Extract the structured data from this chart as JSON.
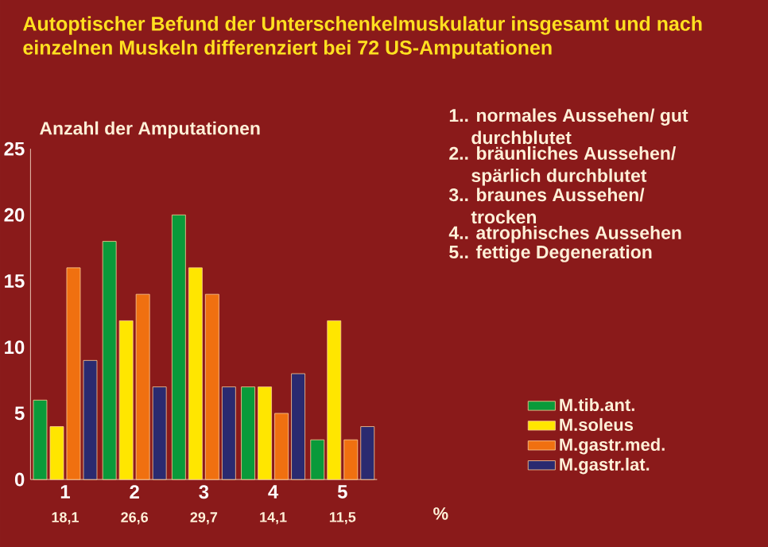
{
  "chart_data": {
    "type": "bar",
    "title": "Autoptischer Befund der Unterschenkelmuskulatur insgesamt und nach einzelnen Muskeln differenziert bei 72 US-Amputationen",
    "ylabel": "Anzahl der Amputationen",
    "categories": [
      "1",
      "2",
      "3",
      "4",
      "5"
    ],
    "series": [
      {
        "name": "M.tib.ant.",
        "color": "#0a9a3a",
        "values": [
          6,
          18,
          20,
          7,
          3
        ]
      },
      {
        "name": "M.soleus",
        "color": "#ffe600",
        "values": [
          4,
          12,
          16,
          7,
          12
        ]
      },
      {
        "name": "M.gastr.med.",
        "color": "#f07010",
        "values": [
          16,
          14,
          14,
          5,
          3
        ]
      },
      {
        "name": "M.gastr.lat.",
        "color": "#2a2a70",
        "values": [
          9,
          7,
          7,
          8,
          4
        ]
      }
    ],
    "ylim": [
      0,
      25
    ],
    "yticks": [
      0,
      5,
      10,
      15,
      20,
      25
    ],
    "grid": false,
    "legend": "bottom right",
    "annotations": [
      "18,1",
      "26,6",
      "29,7",
      "14,1",
      "11,5",
      "%",
      "1.. normales Aussehen/ gut durchblutet",
      "2.. bräunliches Aussehen/ spärlich durchblutet",
      "3.. braunes Aussehen/ trocken",
      "4.. atrophisches Aussehen",
      "5.. fettige Degeneration"
    ]
  }
}
